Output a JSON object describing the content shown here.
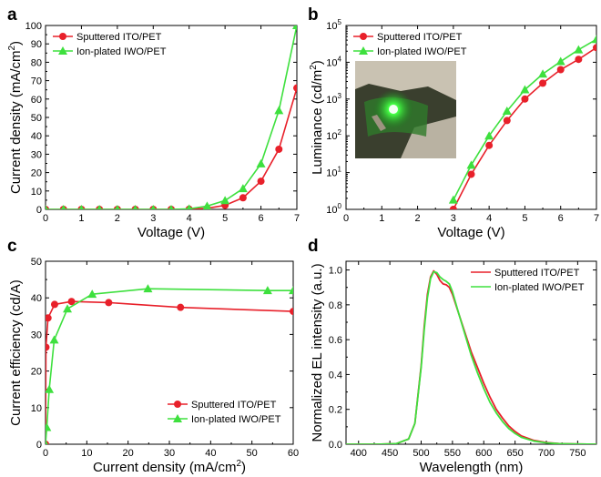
{
  "chart_data": [
    {
      "panel": "a",
      "type": "line",
      "xlabel": "Voltage (V)",
      "ylabel_parts": [
        "Current density (mA/cm",
        "2",
        ")"
      ],
      "xlim": [
        0,
        7
      ],
      "ylim": [
        0,
        100
      ],
      "xticks": [
        0,
        1,
        2,
        3,
        4,
        5,
        6,
        7
      ],
      "yticks": [
        0,
        10,
        20,
        30,
        40,
        50,
        60,
        70,
        80,
        90,
        100
      ],
      "legend_position": "top-left",
      "series": [
        {
          "name": "Sputtered ITO/PET",
          "marker": "circle",
          "color": "#e8202a",
          "x": [
            0,
            0.5,
            1,
            1.5,
            2,
            2.5,
            3,
            3.5,
            4,
            4.5,
            5,
            5.5,
            6,
            6.5,
            7
          ],
          "y": [
            0,
            0,
            0,
            0,
            0,
            0,
            0,
            0,
            0.1,
            0.6,
            2.2,
            6.3,
            15.3,
            32.7,
            66
          ]
        },
        {
          "name": "Ion-plated IWO/PET",
          "marker": "triangle",
          "color": "#3ee03e",
          "x": [
            0,
            0.5,
            1,
            1.5,
            2,
            2.5,
            3,
            3.5,
            4,
            4.5,
            5,
            5.5,
            6,
            6.5,
            7
          ],
          "y": [
            0,
            0,
            0,
            0,
            0,
            0,
            0,
            0,
            0.3,
            1.8,
            4.8,
            11.3,
            24.8,
            53.8,
            100
          ]
        }
      ]
    },
    {
      "panel": "b",
      "type": "line",
      "yscale": "log",
      "xlabel": "Voltage (V)",
      "ylabel_parts": [
        "Luminance (cd/m",
        "2",
        ")"
      ],
      "xlim": [
        0,
        7
      ],
      "ylim": [
        1,
        100000
      ],
      "xticks": [
        0,
        1,
        2,
        3,
        4,
        5,
        6,
        7
      ],
      "ytick_exponents": [
        0,
        1,
        2,
        3,
        4,
        5
      ],
      "ytick_base": "10",
      "legend_position": "top-left",
      "inset": "photo of glowing green flexible OLED",
      "series": [
        {
          "name": "Sputtered ITO/PET",
          "marker": "circle",
          "color": "#e8202a",
          "x": [
            3,
            3.5,
            4,
            4.5,
            5,
            5.5,
            6,
            6.5,
            7
          ],
          "y": [
            1,
            9,
            55,
            260,
            1000,
            2700,
            6300,
            12000,
            25000
          ]
        },
        {
          "name": "Ion-plated IWO/PET",
          "marker": "triangle",
          "color": "#3ee03e",
          "x": [
            3,
            3.5,
            4,
            4.5,
            5,
            5.5,
            6,
            6.5,
            7
          ],
          "y": [
            1.8,
            16,
            100,
            470,
            1800,
            4800,
            10500,
            22000,
            42000
          ]
        }
      ]
    },
    {
      "panel": "c",
      "type": "line",
      "xlabel_parts": [
        "Current density (mA/cm",
        "2",
        ")"
      ],
      "ylabel": "Current efficiency (cd/A)",
      "xlim": [
        0,
        60
      ],
      "ylim": [
        0,
        50
      ],
      "xticks": [
        0,
        10,
        20,
        30,
        40,
        50,
        60
      ],
      "yticks": [
        0,
        10,
        20,
        30,
        40,
        50
      ],
      "legend_position": "bottom-right",
      "series": [
        {
          "name": "Sputtered ITO/PET",
          "marker": "circle",
          "color": "#e8202a",
          "x": [
            0,
            0.1,
            0.6,
            2.2,
            6.3,
            15.3,
            32.7,
            60
          ],
          "y": [
            0,
            26.5,
            34.5,
            38.2,
            39,
            38.7,
            37.4,
            36.3
          ]
        },
        {
          "name": "Ion-plated IWO/PET",
          "marker": "triangle",
          "color": "#3ee03e",
          "x": [
            0,
            0.3,
            0.9,
            2.1,
            5.3,
            11.3,
            24.8,
            53.8,
            60
          ],
          "y": [
            0,
            4.6,
            15,
            28.5,
            37,
            41,
            42.5,
            42,
            42
          ]
        }
      ]
    },
    {
      "panel": "d",
      "type": "line",
      "xlabel": "Wavelength (nm)",
      "ylabel": "Normalized EL intensity (a.u.)",
      "xlim": [
        380,
        780
      ],
      "ylim": [
        0,
        1.05
      ],
      "xticks": [
        400,
        450,
        500,
        550,
        600,
        650,
        700,
        750
      ],
      "yticks": [
        0.0,
        0.2,
        0.4,
        0.6,
        0.8,
        1.0
      ],
      "ytick_labels": [
        "0.0",
        "0.2",
        "0.4",
        "0.6",
        "0.8",
        "1.0"
      ],
      "legend_position": "top-right",
      "series": [
        {
          "name": "Sputtered ITO/PET",
          "color": "#e8202a",
          "x": [
            380,
            430,
            460,
            480,
            490,
            500,
            505,
            510,
            515,
            520,
            525,
            530,
            535,
            540,
            545,
            550,
            560,
            570,
            580,
            590,
            600,
            610,
            620,
            630,
            640,
            650,
            660,
            680,
            700,
            720,
            750,
            780
          ],
          "y": [
            0,
            0,
            0.003,
            0.03,
            0.12,
            0.45,
            0.68,
            0.86,
            0.96,
            0.995,
            0.975,
            0.94,
            0.92,
            0.915,
            0.9,
            0.86,
            0.75,
            0.64,
            0.53,
            0.44,
            0.35,
            0.27,
            0.2,
            0.15,
            0.105,
            0.073,
            0.048,
            0.022,
            0.01,
            0.004,
            0.001,
            0
          ]
        },
        {
          "name": "Ion-plated IWO/PET",
          "color": "#3ee03e",
          "x": [
            380,
            430,
            460,
            480,
            490,
            500,
            505,
            510,
            515,
            520,
            525,
            530,
            535,
            540,
            545,
            550,
            560,
            570,
            580,
            590,
            600,
            610,
            620,
            630,
            640,
            650,
            660,
            680,
            700,
            720,
            750,
            780
          ],
          "y": [
            0,
            0,
            0.003,
            0.03,
            0.12,
            0.44,
            0.66,
            0.84,
            0.95,
            0.99,
            0.985,
            0.96,
            0.945,
            0.935,
            0.92,
            0.875,
            0.75,
            0.63,
            0.51,
            0.41,
            0.32,
            0.24,
            0.18,
            0.13,
            0.09,
            0.062,
            0.04,
            0.018,
            0.008,
            0.003,
            0.001,
            0
          ]
        }
      ]
    }
  ]
}
